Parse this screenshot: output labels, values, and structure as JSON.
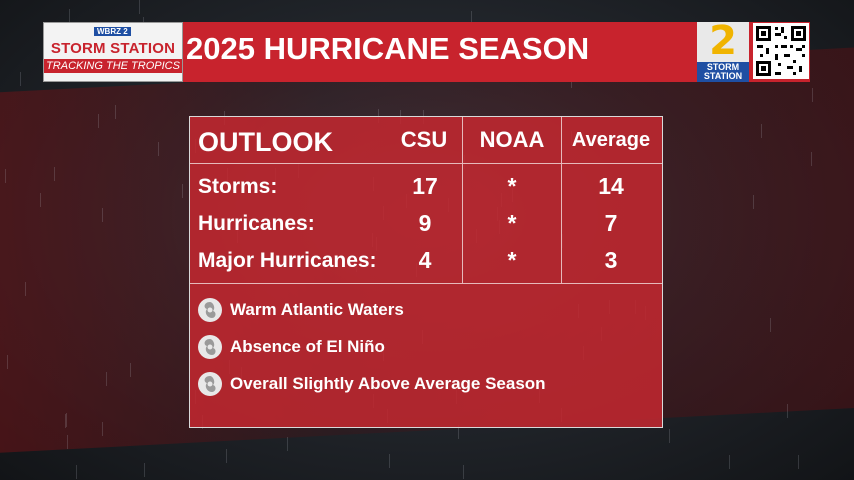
{
  "header": {
    "logo": {
      "station_badge": "WBRZ 2",
      "brand": "STORM STATION",
      "tagline": "TRACKING THE TROPICS"
    },
    "title": "2025 HURRICANE SEASON",
    "channel_badge": {
      "number": "2",
      "line1": "STORM",
      "line2": "STATION"
    }
  },
  "table": {
    "heading": "OUTLOOK",
    "columns": [
      "CSU",
      "NOAA",
      "Average"
    ],
    "rows": [
      {
        "label": "Storms:",
        "csu": "17",
        "noaa": "*",
        "average": "14"
      },
      {
        "label": "Hurricanes:",
        "csu": "9",
        "noaa": "*",
        "average": "7"
      },
      {
        "label": "Major Hurricanes:",
        "csu": "4",
        "noaa": "*",
        "average": "3"
      }
    ]
  },
  "factors": [
    {
      "icon": "hurricane-icon",
      "text": "Warm Atlantic Waters"
    },
    {
      "icon": "hurricane-icon",
      "text": "Absence of El Niño"
    },
    {
      "icon": "hurricane-icon",
      "text": "Overall Slightly Above Average Season"
    }
  ],
  "colors": {
    "accent_red": "#c8232d",
    "logo_blue": "#1f4fa3",
    "badge_gold": "#f0b400"
  }
}
